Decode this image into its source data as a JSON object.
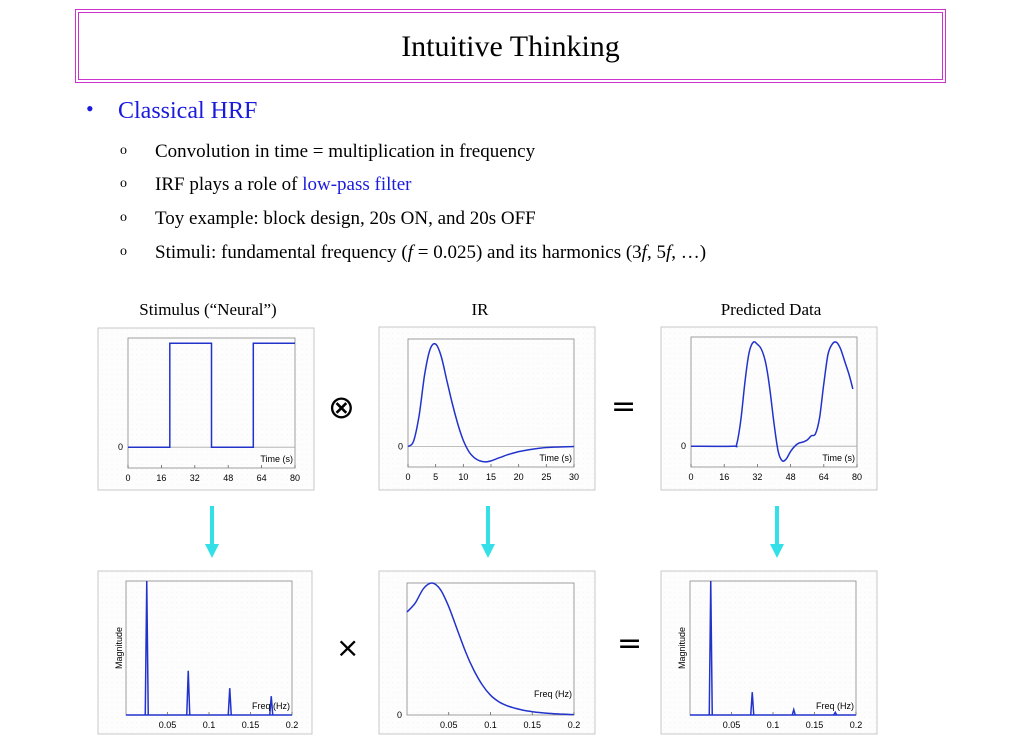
{
  "slide": {
    "title": "Intuitive Thinking",
    "main_bullet": "Classical HRF",
    "sub_bullets": [
      {
        "marker": "o",
        "text": "Convolution in time = multiplication in frequency"
      },
      {
        "marker": "o",
        "prefix": "IRF plays a role of ",
        "link": "low-pass filter"
      },
      {
        "marker": "o",
        "text": "Toy example: block design, 20s ON, and 20s OFF"
      },
      {
        "marker": "o",
        "prefix": "Stimuli: fundamental frequency (",
        "f1": "f",
        "mid1": " = 0.025) and its harmonics (3",
        "f2": "f",
        "mid2": ", 5",
        "f3": "f",
        "suffix": ", …)"
      }
    ],
    "operators": {
      "convolve": "⊗",
      "equals_top": "=",
      "times": "×",
      "equals_bottom": "="
    },
    "colors": {
      "title_border": "#cc33cc",
      "bullet_blue": "#1a1add",
      "plot_line": "#2233cc",
      "arrow": "#33e0e8"
    },
    "icons": [
      "convolution-operator-icon",
      "equals-icon",
      "multiply-icon",
      "down-arrow-icon"
    ]
  },
  "chart_data": [
    {
      "type": "line",
      "title": "Stimulus (“Neural”)",
      "xlabel": "Time (s)",
      "ylabel": "",
      "xlim": [
        0,
        80
      ],
      "xticks": [
        "0",
        "16",
        "32",
        "48",
        "64",
        "80"
      ],
      "yticks": [
        "0"
      ],
      "x": [
        0,
        20,
        20,
        40,
        40,
        60,
        60,
        80
      ],
      "y": [
        0,
        0,
        1,
        1,
        0,
        0,
        1,
        1
      ]
    },
    {
      "type": "line",
      "title": "IR",
      "xlabel": "Time (s)",
      "ylabel": "",
      "xlim": [
        0,
        30
      ],
      "xticks": [
        "0",
        "5",
        "10",
        "15",
        "20",
        "25",
        "30"
      ],
      "yticks": [
        "0"
      ],
      "x": [
        0,
        1,
        2,
        3,
        4,
        5,
        6,
        7,
        8,
        9,
        10,
        11,
        12,
        13,
        14,
        15,
        16,
        17,
        18,
        20,
        22,
        25,
        30
      ],
      "y": [
        0,
        0.05,
        0.3,
        0.7,
        0.95,
        1.0,
        0.88,
        0.65,
        0.42,
        0.22,
        0.06,
        -0.05,
        -0.11,
        -0.14,
        -0.15,
        -0.14,
        -0.12,
        -0.1,
        -0.08,
        -0.05,
        -0.03,
        -0.01,
        0
      ]
    },
    {
      "type": "line",
      "title": "Predicted Data",
      "xlabel": "Time (s)",
      "ylabel": "",
      "xlim": [
        0,
        80
      ],
      "xticks": [
        "0",
        "16",
        "32",
        "48",
        "64",
        "80"
      ],
      "yticks": [
        "0"
      ],
      "x": [
        0,
        20,
        22,
        24,
        26,
        28,
        30,
        32,
        34,
        36,
        38,
        40,
        42,
        44,
        46,
        48,
        50,
        52,
        54,
        56,
        58,
        60,
        62,
        64,
        66,
        68,
        70,
        72,
        74,
        76,
        78
      ],
      "y": [
        0,
        0,
        0.02,
        0.25,
        0.62,
        0.9,
        1.0,
        0.98,
        0.93,
        0.8,
        0.55,
        0.22,
        -0.05,
        -0.14,
        -0.12,
        -0.05,
        0.0,
        0.03,
        0.04,
        0.06,
        0.1,
        0.12,
        0.28,
        0.6,
        0.88,
        0.98,
        1.0,
        0.94,
        0.82,
        0.7,
        0.55
      ]
    },
    {
      "type": "line",
      "title": "",
      "xlabel": "Freq (Hz)",
      "ylabel": "Magnitude",
      "xlim": [
        0,
        0.2
      ],
      "xticks": [
        "0.05",
        "0.1",
        "0.15",
        "0.2"
      ],
      "peaks_x": [
        0.025,
        0.075,
        0.125,
        0.175
      ],
      "peaks_y": [
        1.0,
        0.33,
        0.2,
        0.14
      ]
    },
    {
      "type": "line",
      "title": "",
      "xlabel": "Freq (Hz)",
      "ylabel": "",
      "xlim": [
        0,
        0.2
      ],
      "xticks": [
        "0.05",
        "0.1",
        "0.15",
        "0.2"
      ],
      "yticks": [
        "0"
      ],
      "x": [
        0,
        0.01,
        0.02,
        0.03,
        0.04,
        0.05,
        0.06,
        0.07,
        0.08,
        0.09,
        0.1,
        0.11,
        0.12,
        0.13,
        0.14,
        0.15,
        0.16,
        0.17,
        0.18,
        0.19,
        0.2
      ],
      "y": [
        0.78,
        0.85,
        0.96,
        1.0,
        0.95,
        0.82,
        0.65,
        0.48,
        0.34,
        0.23,
        0.15,
        0.1,
        0.07,
        0.05,
        0.035,
        0.025,
        0.018,
        0.012,
        0.008,
        0.005,
        0.003
      ]
    },
    {
      "type": "line",
      "title": "",
      "xlabel": "Freq (Hz)",
      "ylabel": "Magnitude",
      "xlim": [
        0,
        0.2
      ],
      "xticks": [
        "0.05",
        "0.1",
        "0.15",
        "0.2"
      ],
      "peaks_x": [
        0.025,
        0.075,
        0.125,
        0.175
      ],
      "peaks_y": [
        1.0,
        0.17,
        0.04,
        0.02
      ]
    }
  ]
}
